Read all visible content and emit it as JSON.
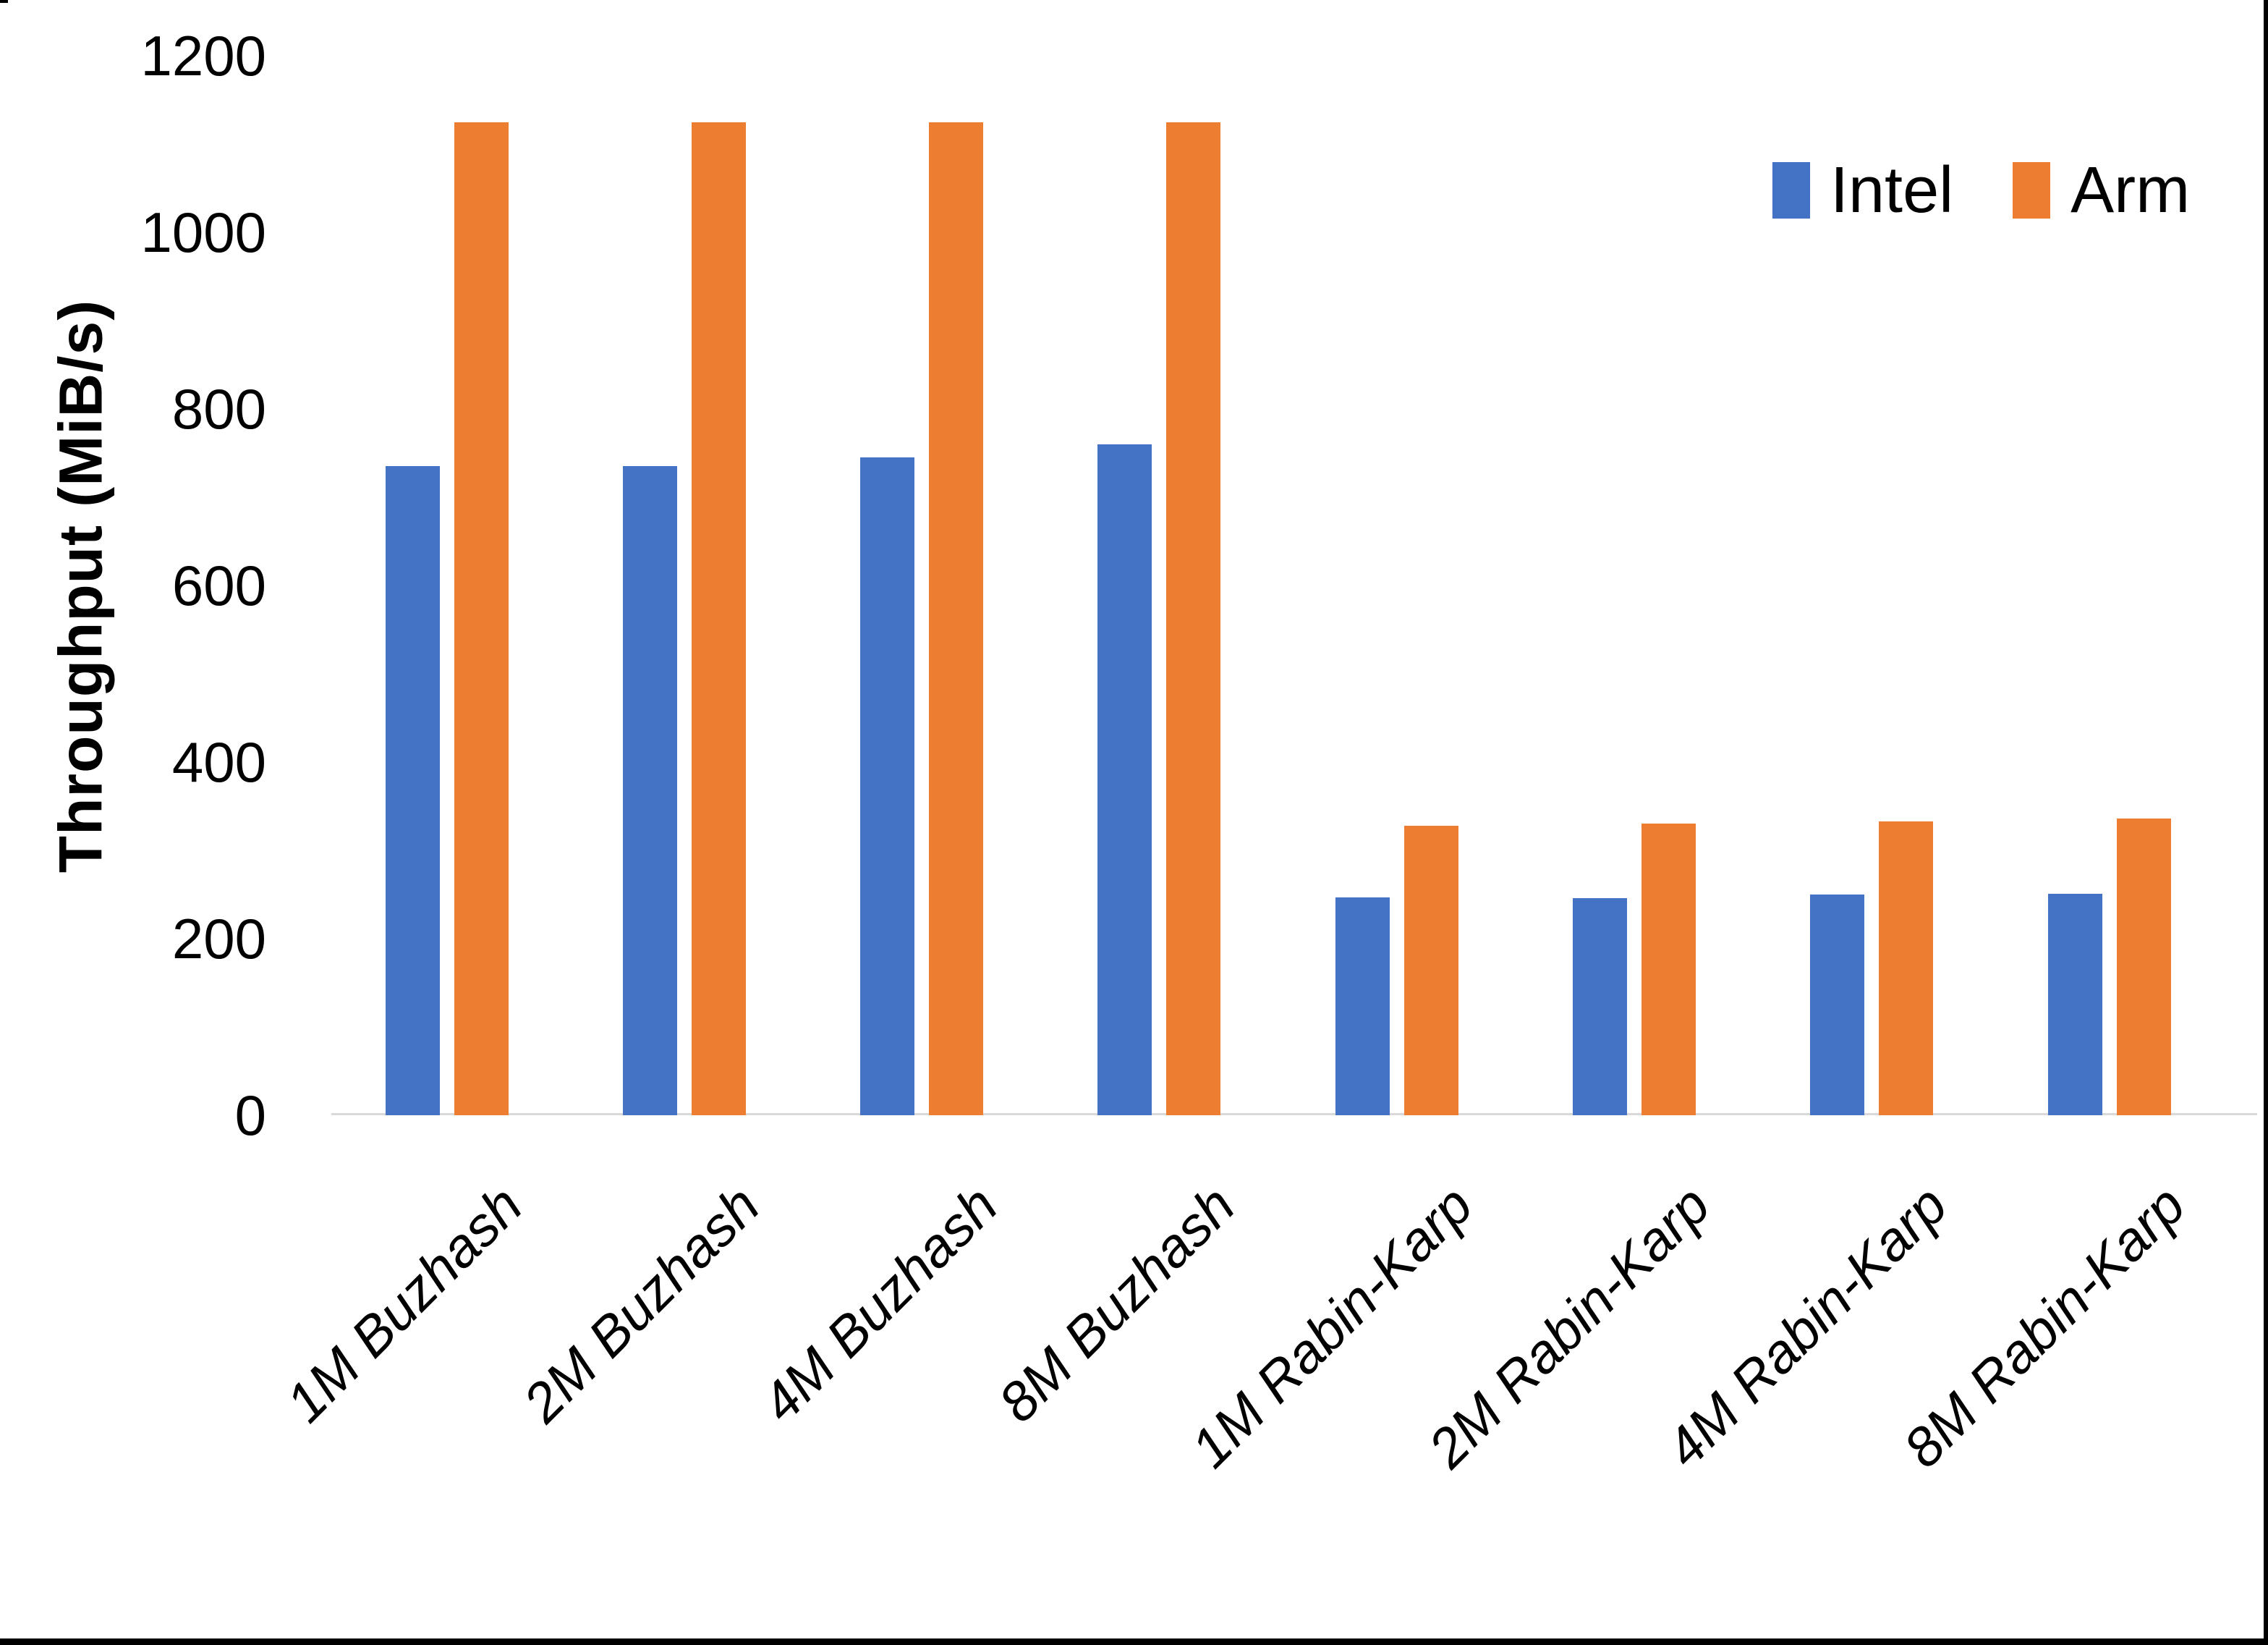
{
  "chart_data": {
    "type": "bar",
    "title": "",
    "xlabel": "",
    "ylabel": "Throughput (MiB/s)",
    "ylim": [
      0,
      1200
    ],
    "ytick_step": 200,
    "yticks": [
      "0",
      "200",
      "400",
      "600",
      "800",
      "1000",
      "1200"
    ],
    "grid": false,
    "legend_position": "top-right",
    "categories": [
      "1M Buzhash",
      "2M Buzhash",
      "4M Buzhash",
      "8M Buzhash",
      "1M Rabin-Karp",
      "2M Rabin-Karp",
      "4M Rabin-Karp",
      "8M Rabin-Karp"
    ],
    "series": [
      {
        "name": "Intel",
        "color": "#4472C4",
        "values": [
          735,
          735,
          745,
          760,
          247,
          246,
          250,
          251
        ]
      },
      {
        "name": "Arm",
        "color": "#ED7D31",
        "values": [
          1125,
          1125,
          1125,
          1125,
          328,
          330,
          333,
          336
        ]
      }
    ],
    "axis_line_color": "#d9d9d9",
    "text_color": "#000000"
  },
  "legend": {
    "items": [
      {
        "label": "Intel",
        "swatch": "intel-series-swatch",
        "color": "#4472C4"
      },
      {
        "label": "Arm",
        "swatch": "arm-series-swatch",
        "color": "#ED7D31"
      }
    ]
  }
}
